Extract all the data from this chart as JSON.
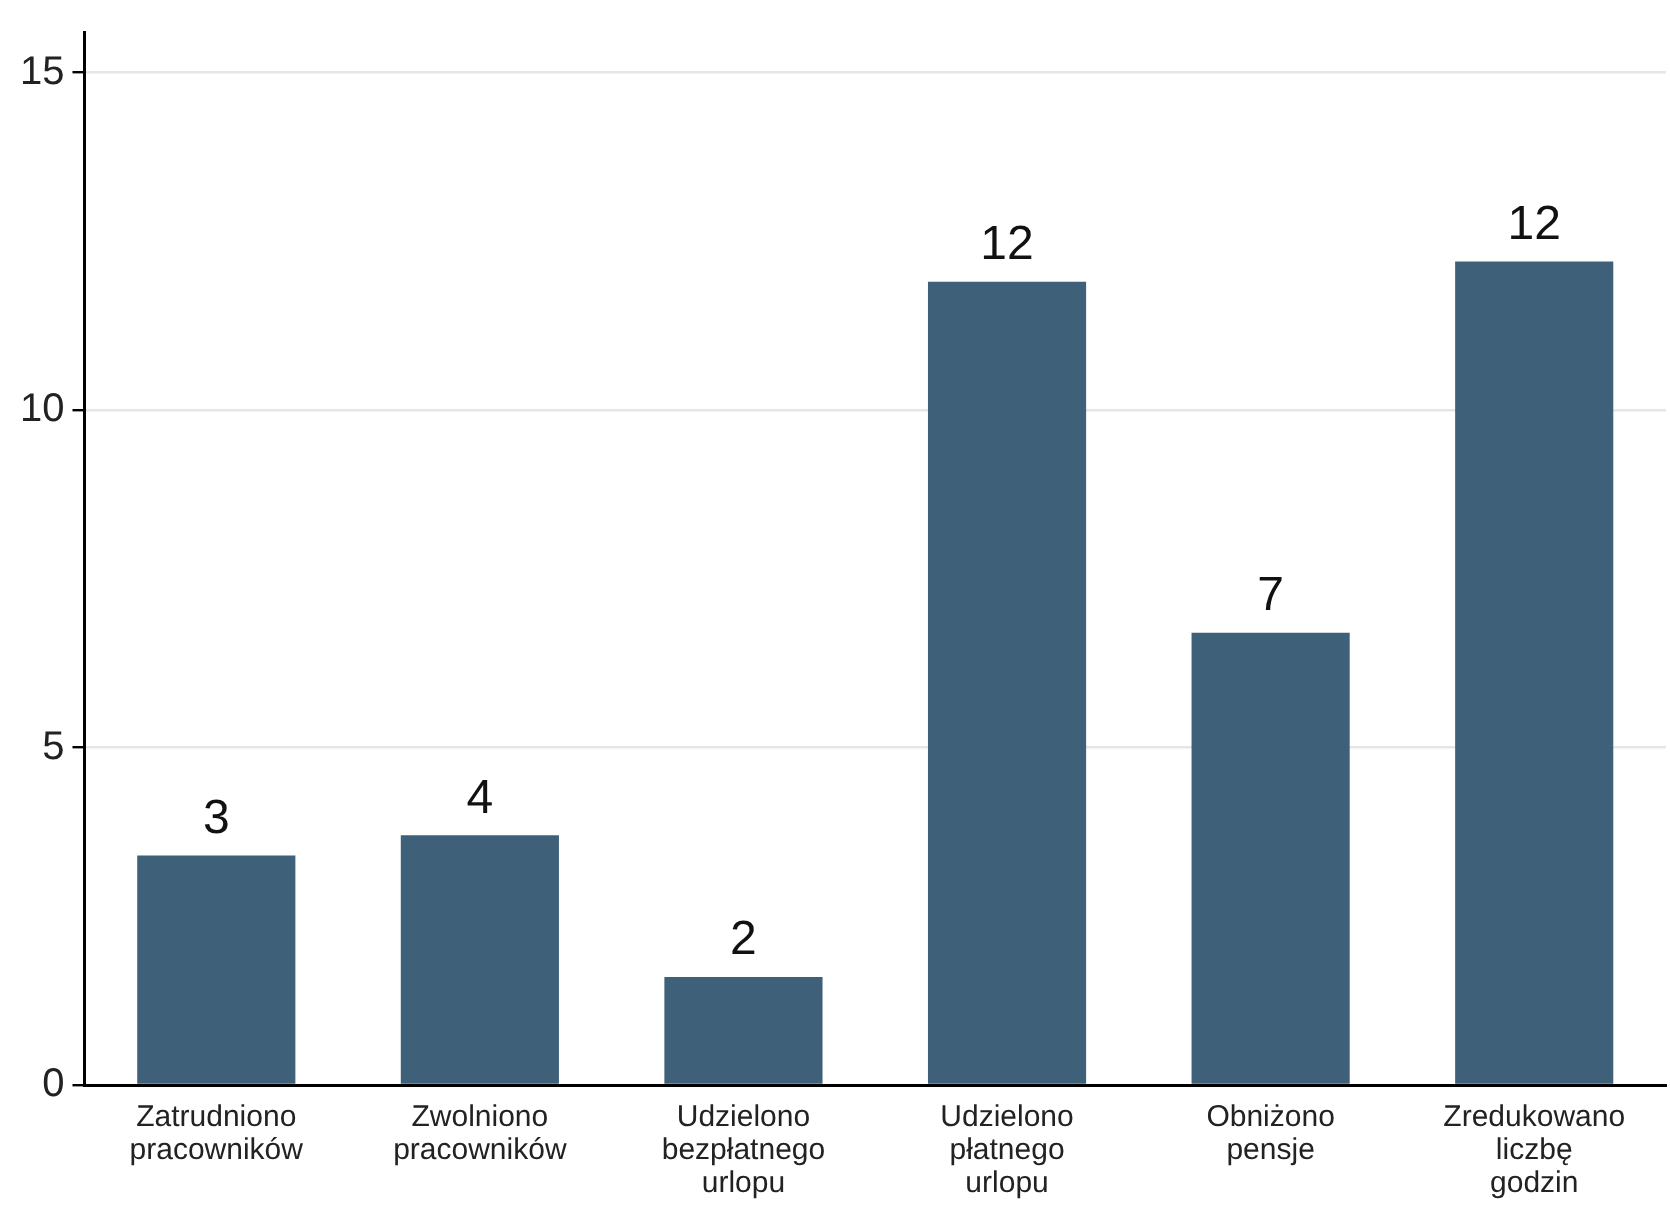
{
  "chart_data": {
    "type": "bar",
    "categories": [
      "Zatrudniono pracowników",
      "Zwolniono pracowników",
      "Udzielono bezpłatnego urlopu",
      "Udzielono płatnego urlopu",
      "Obniżono pensje",
      "Zredukowano liczbę godzin"
    ],
    "values": [
      3.4,
      3.7,
      1.6,
      11.9,
      6.7,
      12.2
    ],
    "value_labels": [
      "3",
      "4",
      "2",
      "12",
      "7",
      "12"
    ],
    "color": "#3e6079",
    "ylim": [
      0,
      15.6
    ],
    "yticks": [
      0,
      5,
      10,
      15
    ],
    "grid": "y"
  }
}
